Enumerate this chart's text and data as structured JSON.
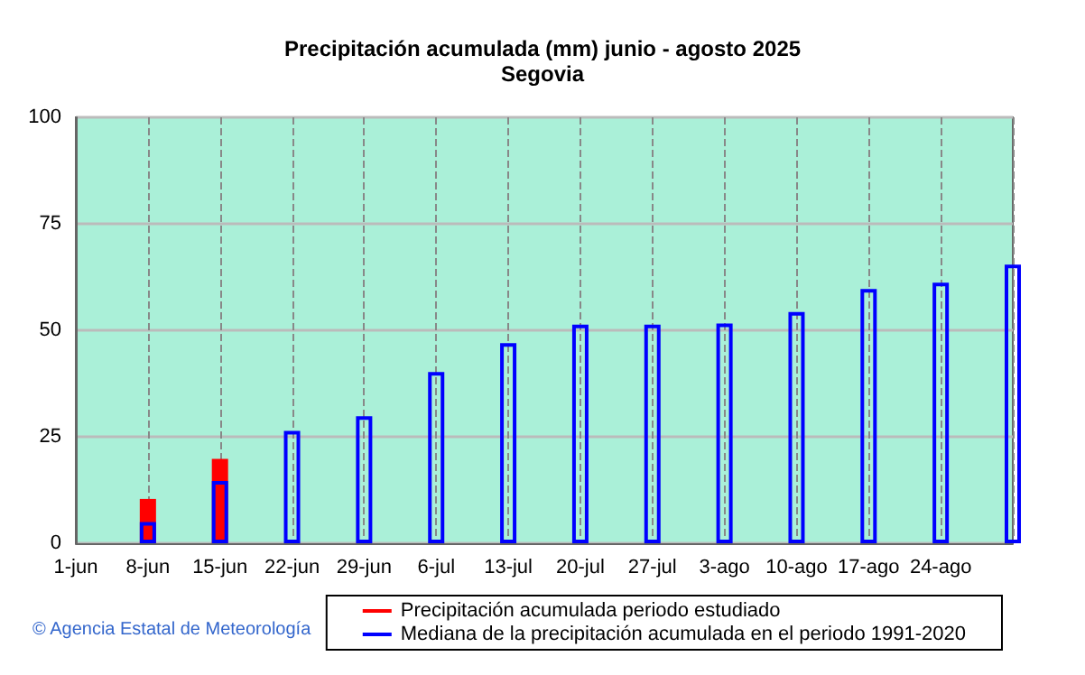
{
  "chart_data": {
    "type": "bar",
    "title": "Precipitación acumulada (mm) junio - agosto 2025",
    "subtitle": "Segovia",
    "categories": [
      "1-jun",
      "8-jun",
      "15-jun",
      "22-jun",
      "29-jun",
      "6-jul",
      "13-jul",
      "20-jul",
      "27-jul",
      "3-ago",
      "10-ago",
      "17-ago",
      "24-ago",
      null
    ],
    "series": [
      {
        "name": "Precipitación acumulada periodo estudiado",
        "color": "#ff0000",
        "values": [
          null,
          10.4,
          19.8,
          null,
          null,
          null,
          null,
          null,
          null,
          null,
          null,
          null,
          null,
          null
        ]
      },
      {
        "name": "Mediana de la precipitación acumulada en el periodo 1991-2020",
        "color": "#0000ff",
        "values": [
          null,
          5,
          14.6,
          26.4,
          29.8,
          40.2,
          47,
          51.3,
          51.3,
          51.6,
          54.3,
          59.7,
          61.2,
          65.4
        ]
      }
    ],
    "ylim": [
      0,
      100
    ],
    "yticks": [
      0,
      25,
      50,
      75,
      100
    ],
    "grid": true,
    "legend": "bottom right",
    "annotations": [
      "© Agencia Estatal de Meteorología"
    ]
  }
}
